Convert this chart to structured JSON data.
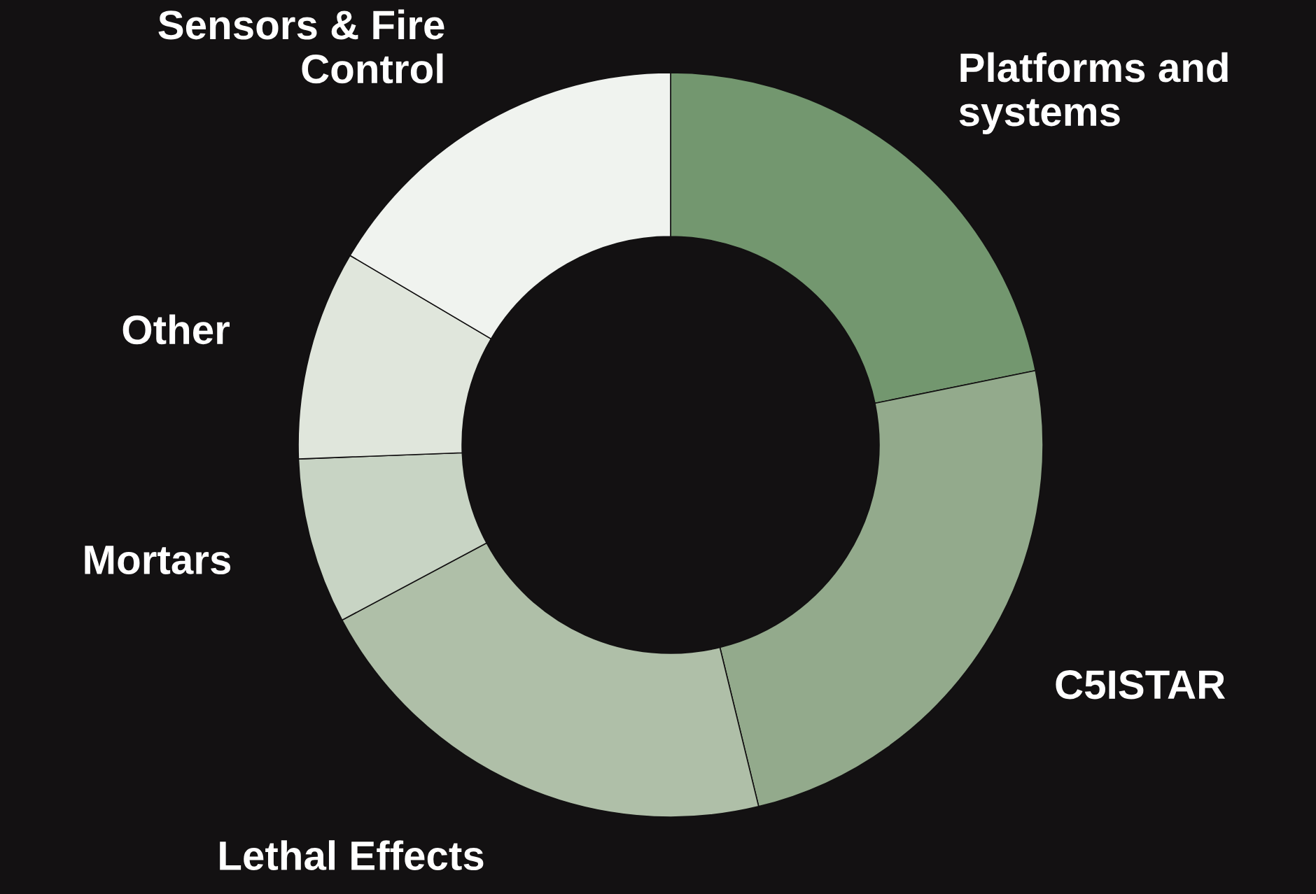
{
  "chart_data": {
    "type": "donut",
    "categories": [
      "Platforms and\nsystems",
      "C5ISTAR",
      "Lethal Effects",
      "Mortars",
      "Other",
      "Sensors & Fire\nControl"
    ],
    "values": [
      21.8,
      24.4,
      21.0,
      7.2,
      9.1,
      16.5
    ],
    "colors": [
      "#73976f",
      "#93aa8c",
      "#afbfa8",
      "#c8d4c4",
      "#e0e6dc",
      "#f0f3ef"
    ],
    "legend": false
  }
}
